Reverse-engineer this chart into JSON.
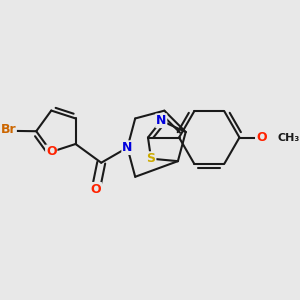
{
  "background_color": "#e8e8e8",
  "bond_color": "#1a1a1a",
  "bond_width": 1.5,
  "atom_colors": {
    "Br": "#cc6600",
    "O": "#ff2200",
    "N": "#0000dd",
    "S": "#ccaa00",
    "C": "#1a1a1a"
  },
  "font_size": 9.0,
  "font_size_small": 8.0
}
